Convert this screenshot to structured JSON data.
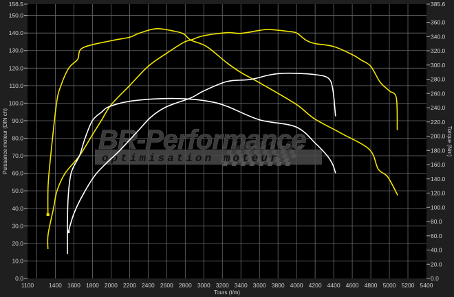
{
  "chart_data": {
    "type": "line",
    "title": "",
    "xlabel": "Tours (t/m)",
    "ylabel_left": "Puissance moteur (DIN ch)",
    "ylabel_right": "Torque (Nm)",
    "xlim": [
      1100,
      5400
    ],
    "ylim_left": [
      0,
      156.5
    ],
    "ylim_right": [
      0,
      385.6
    ],
    "x_ticks": [
      1100,
      1400,
      1600,
      1800,
      2000,
      2200,
      2400,
      2600,
      2800,
      3000,
      3200,
      3400,
      3600,
      3800,
      4000,
      4200,
      4400,
      4600,
      4800,
      5000,
      5200,
      5400
    ],
    "x_grid": [
      1200,
      1400,
      1600,
      1800,
      2000,
      2200,
      2400,
      2600,
      2800,
      3000,
      3200,
      3400,
      3600,
      3800,
      4000,
      4200,
      4400,
      4600,
      4800,
      5000,
      5200
    ],
    "y_left_ticks": [
      "0.0",
      "10.0",
      "20.0",
      "30.0",
      "40.0",
      "50.0",
      "60.0",
      "70.0",
      "80.0",
      "90.0",
      "100.0",
      "110.0",
      "120.0",
      "130.0",
      "140.0",
      "150.0",
      "156.5"
    ],
    "y_right_ticks": [
      "0.0",
      "20.0",
      "40.0",
      "60.0",
      "80.0",
      "100.0",
      "120.0",
      "140.0",
      "160.0",
      "180.0",
      "200.0",
      "220.0",
      "240.0",
      "260.0",
      "280.0",
      "300.0",
      "320.0",
      "340.0",
      "360.0",
      "385.6"
    ],
    "grid": true,
    "background": "#000000",
    "series": [
      {
        "color": "#f2e600",
        "axis": "left",
        "marker_at_start": false,
        "x": [
          1320,
          1322,
          1380,
          1418,
          1505,
          1660,
          1800,
          1900,
          2000,
          2200,
          2400,
          2600,
          2785,
          2860,
          3000,
          3250,
          3400,
          3600,
          3700,
          3900,
          4000,
          4100,
          4200,
          4400,
          4600,
          4700,
          4800,
          4900,
          5000,
          5075,
          5085
        ],
        "y": [
          16.8,
          25.2,
          40,
          50,
          60,
          70,
          82,
          90.5,
          99,
          110,
          121,
          128.5,
          134.7,
          136,
          138.5,
          140.2,
          139.8,
          141.5,
          142,
          141,
          140,
          136,
          134,
          132.3,
          127.7,
          124.5,
          121,
          112,
          107,
          103,
          84.6
        ]
      },
      {
        "color": "#f2e600",
        "axis": "right",
        "marker_at_start": true,
        "x": [
          1320,
          1322,
          1350,
          1413,
          1460,
          1545,
          1640,
          1693,
          1990,
          2200,
          2300,
          2485,
          2687,
          2785,
          2860,
          3030,
          3250,
          3400,
          3622,
          3993,
          4190,
          4489,
          4785,
          4880,
          4981,
          5090
        ],
        "y": [
          89.7,
          130.6,
          172.5,
          246.4,
          271,
          295.7,
          308,
          324,
          333.9,
          339,
          344.5,
          351,
          347.4,
          343.5,
          335,
          326,
          303,
          289.5,
          273.5,
          245,
          224.7,
          203.5,
          181.3,
          153.7,
          143,
          116.8
        ]
      },
      {
        "color": "#ffffff",
        "axis": "left",
        "marker_at_start": true,
        "x": [
          1540,
          1600,
          1700,
          1845,
          2090,
          2200,
          2300,
          2437,
          2600,
          2860,
          3000,
          3252,
          3500,
          3700,
          3844,
          4000,
          4200,
          4341,
          4390,
          4420
        ],
        "y": [
          26.6,
          37,
          48,
          60,
          72.8,
          79,
          84.7,
          92.4,
          98,
          103,
          107,
          112.4,
          113.5,
          116,
          117,
          117,
          116.3,
          114.3,
          108,
          92.5
        ]
      },
      {
        "color": "#ffffff",
        "axis": "right",
        "marker_at_start": false,
        "x": [
          1530,
          1535,
          1570,
          1660,
          1720,
          1800,
          1900,
          1980,
          2200,
          2500,
          2800,
          3050,
          3250,
          3600,
          3993,
          4210,
          4330,
          4390,
          4420
        ],
        "y": [
          34.5,
          106,
          148,
          172.5,
          197,
          222,
          234,
          241.5,
          249,
          252.5,
          252.5,
          249,
          242,
          223,
          213,
          189,
          172.5,
          160,
          148
        ]
      }
    ]
  },
  "watermark": {
    "brand": "BR-Performance",
    "tagline": "optimisation moteur"
  }
}
